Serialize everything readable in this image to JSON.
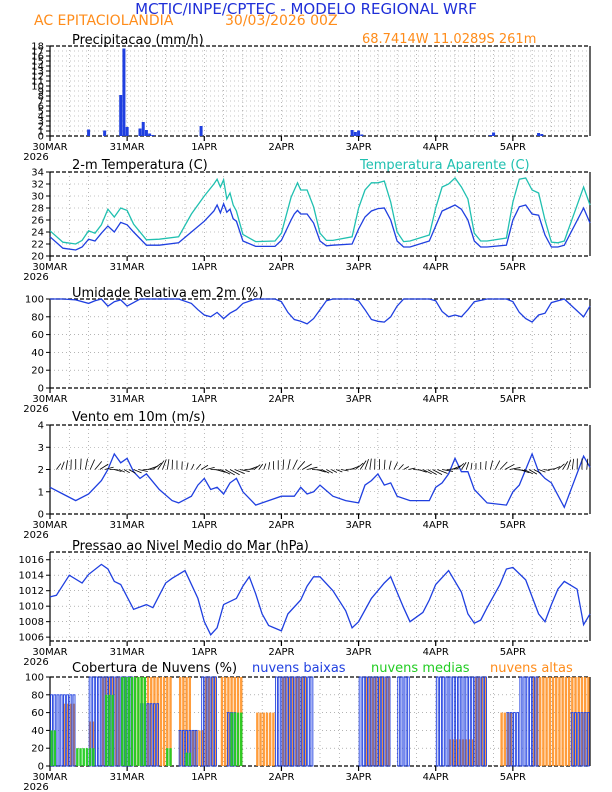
{
  "header": {
    "title": "MCTIC/INPE/CPTEC - MODELO REGIONAL WRF",
    "location": "AC EPITACIOLANDIA",
    "run": "30/03/2026 00Z",
    "coords": "68.7414W 11.0289S 261m"
  },
  "colors": {
    "title": "#1f2fd8",
    "orange": "#ff8c1a",
    "blue": "#1f3fe0",
    "cyan": "#20c0b0",
    "green": "#22cc22",
    "grid": "#888888"
  },
  "x_axis": {
    "labels": [
      "30MAR",
      "31MAR",
      "1APR",
      "2APR",
      "3APR",
      "4APR",
      "5APR"
    ],
    "year": "2026",
    "hours": 168
  },
  "chart_data": [
    {
      "type": "bar",
      "title": "Precipitacao (mm/h)",
      "ylim": [
        0,
        18
      ],
      "yticks": [
        0,
        1,
        2,
        3,
        4,
        5,
        6,
        7,
        8,
        9,
        10,
        11,
        12,
        13,
        14,
        15,
        16,
        17,
        18
      ],
      "ytick_labels": [
        "0",
        "1",
        "2",
        "3",
        "4",
        "5",
        "6",
        "7",
        "8",
        "9",
        "10",
        "11",
        "12",
        "13",
        "14",
        "15",
        "16",
        "17",
        "18"
      ],
      "series": [
        {
          "name": "Precipitacao",
          "x": [
            12,
            17,
            22,
            23,
            24,
            28,
            29,
            30,
            31,
            32,
            47,
            94,
            95,
            96,
            97,
            137,
            138,
            152,
            153
          ],
          "values": [
            1.3,
            1.1,
            8.2,
            17.5,
            1.8,
            1.5,
            2.8,
            1.2,
            0.5,
            0.2,
            2.0,
            1.2,
            0.8,
            1.1,
            0.3,
            0.2,
            0.7,
            0.6,
            0.4
          ]
        }
      ]
    },
    {
      "type": "line",
      "title": "2-m Temperatura (C)",
      "legend": "Temperatura Aparente (C)",
      "ylim": [
        20,
        34
      ],
      "yticks": [
        20,
        22,
        24,
        26,
        28,
        30,
        32,
        34
      ],
      "ytick_labels": [
        "20",
        "22",
        "24",
        "26",
        "28",
        "30",
        "32",
        "34"
      ],
      "series": [
        {
          "name": "2-m Temperatura (C)",
          "x": [
            0,
            4,
            8,
            10,
            12,
            14,
            16,
            18,
            20,
            22,
            24,
            26,
            30,
            34,
            40,
            44,
            48,
            51,
            52,
            53,
            54,
            55,
            56,
            57,
            58,
            60,
            64,
            70,
            72,
            75,
            76,
            77,
            78,
            80,
            82,
            84,
            86,
            88,
            94,
            96,
            98,
            100,
            102,
            104,
            106,
            108,
            110,
            112,
            118,
            120,
            122,
            124,
            126,
            128,
            130,
            132,
            134,
            136,
            142,
            144,
            146,
            148,
            150,
            152,
            154,
            156,
            158,
            160,
            166,
            168
          ],
          "values": [
            23.2,
            21.3,
            21.0,
            21.5,
            22.8,
            22.5,
            23.8,
            25.0,
            24.0,
            25.6,
            25.2,
            24.0,
            21.8,
            21.8,
            22.2,
            24.0,
            25.8,
            27.5,
            28.5,
            27.2,
            28.7,
            27.3,
            27.8,
            26.2,
            25.8,
            22.5,
            21.6,
            21.6,
            22.6,
            26.0,
            27.0,
            27.6,
            27.0,
            27.0,
            25.5,
            22.5,
            21.7,
            21.8,
            22.0,
            24.5,
            26.5,
            27.5,
            27.9,
            28.0,
            26.0,
            22.5,
            21.5,
            21.5,
            22.5,
            25.0,
            27.5,
            28.0,
            28.5,
            27.8,
            26.0,
            22.5,
            21.5,
            21.5,
            21.8,
            26.0,
            28.2,
            28.5,
            27.0,
            26.8,
            23.5,
            21.5,
            21.5,
            21.8,
            28.0,
            25.5
          ]
        },
        {
          "name": "Temperatura Aparente (C)",
          "x": [
            0,
            4,
            8,
            10,
            12,
            14,
            16,
            18,
            20,
            22,
            24,
            26,
            30,
            34,
            40,
            44,
            48,
            51,
            52,
            53,
            54,
            55,
            56,
            57,
            58,
            60,
            64,
            70,
            72,
            75,
            76,
            77,
            78,
            80,
            82,
            84,
            86,
            88,
            94,
            96,
            98,
            100,
            102,
            104,
            106,
            108,
            110,
            112,
            118,
            120,
            122,
            124,
            126,
            128,
            130,
            132,
            134,
            136,
            142,
            144,
            146,
            148,
            150,
            152,
            154,
            156,
            158,
            160,
            166,
            168
          ],
          "values": [
            24.2,
            22.3,
            22.0,
            22.6,
            24.2,
            23.8,
            25.2,
            27.8,
            26.5,
            28.0,
            27.6,
            25.3,
            22.7,
            22.8,
            23.2,
            27.0,
            30.0,
            32.0,
            32.8,
            31.5,
            32.7,
            29.5,
            30.5,
            28.5,
            27.5,
            23.6,
            22.4,
            22.5,
            23.8,
            29.8,
            31.0,
            32.2,
            31.0,
            31.0,
            28.2,
            23.8,
            22.6,
            22.6,
            23.2,
            28.0,
            31.0,
            32.2,
            32.2,
            32.5,
            29.0,
            24.0,
            22.4,
            22.5,
            23.5,
            28.0,
            31.5,
            32.0,
            33.0,
            31.5,
            29.5,
            23.8,
            22.5,
            22.5,
            23.0,
            29.0,
            32.8,
            33.0,
            31.0,
            30.5,
            26.0,
            22.3,
            22.2,
            22.5,
            31.5,
            28.5
          ]
        }
      ]
    },
    {
      "type": "line",
      "title": "Umidade Relativa em 2m (%)",
      "ylim": [
        0,
        100
      ],
      "yticks": [
        0,
        20,
        40,
        60,
        80,
        100
      ],
      "ytick_labels": [
        "0",
        "20",
        "40",
        "60",
        "80",
        "100"
      ],
      "series": [
        {
          "name": "Umidade Relativa em 2m (%)",
          "x": [
            0,
            4,
            8,
            12,
            14,
            16,
            18,
            20,
            22,
            24,
            26,
            28,
            30,
            34,
            40,
            44,
            46,
            48,
            50,
            52,
            54,
            56,
            58,
            60,
            64,
            70,
            72,
            74,
            76,
            78,
            80,
            82,
            84,
            86,
            88,
            94,
            96,
            98,
            100,
            102,
            104,
            106,
            108,
            110,
            118,
            120,
            122,
            124,
            126,
            128,
            130,
            132,
            136,
            142,
            144,
            146,
            148,
            150,
            152,
            154,
            156,
            160,
            166,
            168
          ],
          "values": [
            100,
            100,
            99,
            95,
            98,
            100,
            92,
            97,
            99,
            92,
            96,
            100,
            100,
            100,
            100,
            95,
            88,
            82,
            80,
            85,
            78,
            84,
            88,
            95,
            100,
            100,
            97,
            85,
            77,
            75,
            72,
            78,
            88,
            98,
            100,
            100,
            98,
            88,
            77,
            75,
            74,
            80,
            92,
            100,
            100,
            98,
            86,
            80,
            82,
            80,
            88,
            97,
            100,
            100,
            97,
            85,
            78,
            74,
            82,
            84,
            96,
            100,
            80,
            92
          ]
        }
      ]
    },
    {
      "type": "line",
      "title": "Vento em 10m (m/s)",
      "ylim": [
        0,
        4
      ],
      "yticks": [
        0,
        1,
        2,
        3,
        4
      ],
      "ytick_labels": [
        "0",
        "1",
        "2",
        "3",
        "4"
      ],
      "series": [
        {
          "name": "Vento em 10m (m/s)",
          "x": [
            0,
            4,
            8,
            12,
            16,
            18,
            20,
            22,
            24,
            26,
            28,
            30,
            34,
            38,
            40,
            44,
            46,
            48,
            50,
            52,
            54,
            56,
            58,
            60,
            64,
            68,
            72,
            76,
            78,
            80,
            82,
            84,
            88,
            92,
            96,
            98,
            100,
            102,
            104,
            106,
            108,
            112,
            118,
            120,
            122,
            124,
            126,
            128,
            130,
            132,
            136,
            142,
            144,
            146,
            148,
            150,
            152,
            154,
            156,
            160,
            166,
            168
          ],
          "values": [
            1.2,
            0.9,
            0.6,
            0.9,
            1.5,
            2.0,
            2.7,
            2.3,
            2.5,
            1.9,
            1.6,
            1.8,
            1.1,
            0.6,
            0.5,
            0.8,
            1.3,
            1.6,
            1.1,
            1.2,
            0.9,
            1.4,
            1.6,
            1.0,
            0.4,
            0.6,
            0.8,
            0.8,
            1.2,
            0.9,
            1.0,
            1.3,
            0.8,
            0.6,
            0.5,
            1.3,
            1.5,
            1.8,
            1.3,
            1.4,
            0.8,
            0.6,
            0.6,
            1.2,
            1.4,
            1.8,
            2.5,
            1.9,
            1.9,
            1.1,
            0.5,
            0.4,
            1.0,
            1.3,
            2.0,
            2.7,
            1.9,
            1.6,
            1.4,
            0.3,
            2.6,
            2.1
          ]
        }
      ]
    },
    {
      "type": "line",
      "title": "Pressao ao Nivel Medio do Mar (hPa)",
      "ylim": [
        1005.5,
        1017
      ],
      "yticks": [
        1006,
        1008,
        1010,
        1012,
        1014,
        1016
      ],
      "ytick_labels": [
        "1006",
        "1008",
        "1010",
        "1012",
        "1014",
        "1016"
      ],
      "series": [
        {
          "name": "Pressao ao Nivel Medio do Mar (hPa)",
          "x": [
            0,
            2,
            6,
            10,
            12,
            16,
            18,
            20,
            22,
            26,
            30,
            32,
            34,
            36,
            38,
            42,
            46,
            48,
            50,
            52,
            54,
            58,
            60,
            62,
            64,
            66,
            68,
            72,
            74,
            78,
            80,
            82,
            84,
            88,
            92,
            94,
            96,
            100,
            104,
            106,
            108,
            110,
            112,
            116,
            118,
            120,
            124,
            128,
            130,
            132,
            134,
            136,
            140,
            142,
            144,
            148,
            152,
            154,
            156,
            158,
            160,
            164,
            166,
            168
          ],
          "values": [
            1011.2,
            1011.4,
            1014.0,
            1013.0,
            1014.1,
            1015.4,
            1014.8,
            1013.2,
            1012.8,
            1009.6,
            1010.2,
            1009.8,
            1011.4,
            1013.0,
            1013.6,
            1014.6,
            1011.0,
            1008.0,
            1006.3,
            1007.2,
            1010.2,
            1011.0,
            1012.6,
            1013.8,
            1011.6,
            1009.0,
            1007.5,
            1006.8,
            1009.0,
            1010.8,
            1012.6,
            1013.8,
            1013.8,
            1012.0,
            1009.4,
            1007.2,
            1008.0,
            1011.0,
            1013.0,
            1013.8,
            1011.8,
            1009.8,
            1008.0,
            1009.2,
            1010.8,
            1012.8,
            1014.6,
            1011.8,
            1009.0,
            1007.8,
            1008.2,
            1009.8,
            1012.8,
            1014.8,
            1015.0,
            1013.4,
            1009.0,
            1008.0,
            1010.2,
            1012.2,
            1013.2,
            1012.2,
            1007.6,
            1009.0
          ]
        }
      ]
    },
    {
      "type": "bar",
      "title": "Cobertura de Nuvens (%)",
      "ylim": [
        0,
        100
      ],
      "yticks": [
        0,
        20,
        40,
        60,
        80,
        100
      ],
      "ytick_labels": [
        "0",
        "20",
        "40",
        "60",
        "80",
        "100"
      ],
      "legend": [
        "nuvens baixas",
        "nuvens medias",
        "nuvens altas"
      ],
      "series": [
        {
          "name": "nuvens baixas",
          "ranges": [
            [
              0,
              8,
              80
            ],
            [
              12,
              26,
              100
            ],
            [
              28,
              34,
              70
            ],
            [
              40,
              46,
              40
            ],
            [
              47,
              52,
              100
            ],
            [
              55,
              58,
              60
            ],
            [
              70,
              82,
              100
            ],
            [
              96,
              106,
              100
            ],
            [
              108,
              112,
              100
            ],
            [
              120,
              126,
              100
            ],
            [
              126,
              136,
              100
            ],
            [
              142,
              146,
              60
            ],
            [
              146,
              152,
              100
            ],
            [
              162,
              168,
              60
            ]
          ]
        },
        {
          "name": "nuvens medias",
          "ranges": [
            [
              0,
              2,
              40
            ],
            [
              8,
              14,
              20
            ],
            [
              17,
              20,
              80
            ],
            [
              22,
              30,
              100
            ],
            [
              36,
              38,
              20
            ],
            [
              42,
              44,
              15
            ],
            [
              56,
              60,
              60
            ]
          ]
        },
        {
          "name": "nuvens altas",
          "ranges": [
            [
              4,
              8,
              70
            ],
            [
              12,
              14,
              50
            ],
            [
              16,
              22,
              100
            ],
            [
              22,
              30,
              100
            ],
            [
              30,
              38,
              100
            ],
            [
              40,
              44,
              100
            ],
            [
              44,
              48,
              40
            ],
            [
              48,
              52,
              100
            ],
            [
              53,
              60,
              100
            ],
            [
              64,
              70,
              60
            ],
            [
              72,
              80,
              100
            ],
            [
              98,
              106,
              100
            ],
            [
              124,
              132,
              30
            ],
            [
              132,
              136,
              100
            ],
            [
              140,
              144,
              60
            ],
            [
              150,
              168,
              100
            ]
          ]
        }
      ]
    }
  ]
}
